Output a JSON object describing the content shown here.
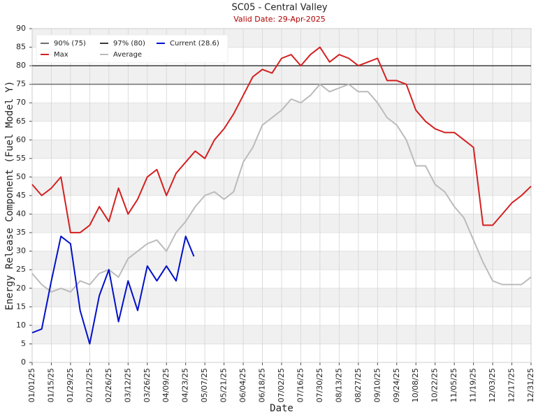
{
  "chart_data": {
    "type": "line",
    "title": "SC05 - Central Valley",
    "subtitle": "Valid Date: 29-Apr-2025",
    "x_label": "Date",
    "y_label": "Energy Release Component (Fuel Model Y)",
    "x": [
      "01/01/25",
      "01/08/25",
      "01/15/25",
      "01/22/25",
      "01/29/25",
      "02/05/25",
      "02/12/25",
      "02/19/25",
      "02/26/25",
      "03/05/25",
      "03/12/25",
      "03/19/25",
      "03/26/25",
      "04/02/25",
      "04/09/25",
      "04/16/25",
      "04/23/25",
      "04/30/25",
      "05/07/25",
      "05/14/25",
      "05/21/25",
      "05/28/25",
      "06/04/25",
      "06/11/25",
      "06/18/25",
      "06/25/25",
      "07/02/25",
      "07/09/25",
      "07/16/25",
      "07/23/25",
      "07/30/25",
      "08/06/25",
      "08/13/25",
      "08/20/25",
      "08/27/25",
      "09/03/25",
      "09/10/25",
      "09/17/25",
      "09/24/25",
      "10/01/25",
      "10/08/25",
      "10/15/25",
      "10/22/25",
      "10/29/25",
      "11/05/25",
      "11/12/25",
      "11/19/25",
      "11/26/25",
      "12/03/25",
      "12/10/25",
      "12/17/25",
      "12/24/25",
      "12/31/25"
    ],
    "xlim": [
      "01/01/25",
      "12/31/25"
    ],
    "xticks": [
      "01/01/25",
      "01/15/25",
      "01/29/25",
      "02/12/25",
      "02/26/25",
      "03/12/25",
      "03/26/25",
      "04/09/25",
      "04/23/25",
      "05/07/25",
      "05/21/25",
      "06/04/25",
      "06/18/25",
      "07/02/25",
      "07/16/25",
      "07/30/25",
      "08/13/25",
      "08/27/25",
      "09/10/25",
      "09/24/25",
      "10/08/25",
      "10/22/25",
      "11/05/25",
      "11/19/25",
      "12/03/25",
      "12/17/25",
      "12/31/25"
    ],
    "ylim": [
      0,
      90
    ],
    "yticks": [
      0,
      5,
      10,
      15,
      20,
      25,
      30,
      35,
      40,
      45,
      50,
      55,
      60,
      65,
      70,
      75,
      80,
      85,
      90
    ],
    "grid": true,
    "legend": "upper left",
    "reference_lines": [
      {
        "name": "90% (75)",
        "value": 75,
        "color": "#6e6e6e"
      },
      {
        "name": "97% (80)",
        "value": 80,
        "color": "#3c3c3c"
      }
    ],
    "series": [
      {
        "name": "Current (28.6)",
        "color": "#0010c8",
        "x": [
          "01/01/25",
          "01/08/25",
          "01/15/25",
          "01/22/25",
          "01/29/25",
          "02/05/25",
          "02/12/25",
          "02/19/25",
          "02/26/25",
          "03/05/25",
          "03/12/25",
          "03/19/25",
          "03/26/25",
          "04/02/25",
          "04/09/25",
          "04/16/25",
          "04/23/25",
          "04/29/25"
        ],
        "values": [
          8,
          9,
          22,
          34,
          32,
          14,
          5,
          18,
          25,
          11,
          22,
          14,
          26,
          22,
          26,
          22,
          34,
          28.6
        ]
      },
      {
        "name": "Max",
        "color": "#d42020",
        "values": [
          48,
          45,
          47,
          50,
          35,
          35,
          37,
          42,
          38,
          47,
          40,
          44,
          50,
          52,
          45,
          51,
          54,
          57,
          55,
          60,
          63,
          67,
          72,
          77,
          79,
          78,
          82,
          83,
          80,
          83,
          85,
          81,
          83,
          82,
          80,
          81,
          82,
          76,
          76,
          75,
          68,
          65,
          63,
          62,
          62,
          60,
          58,
          37,
          37,
          40,
          43,
          45,
          47.5
        ]
      },
      {
        "name": "Average",
        "color": "#bbbbbb",
        "values": [
          24,
          21,
          19,
          20,
          19,
          22,
          21,
          24,
          25,
          23,
          28,
          30,
          32,
          33,
          30,
          35,
          38,
          42,
          45,
          46,
          44,
          46,
          54,
          58,
          64,
          66,
          68,
          71,
          70,
          72,
          75,
          73,
          74,
          75,
          73,
          73,
          70,
          66,
          64,
          60,
          53,
          53,
          48,
          46,
          42,
          39,
          33,
          27,
          22,
          21,
          21,
          21,
          23
        ]
      }
    ]
  }
}
